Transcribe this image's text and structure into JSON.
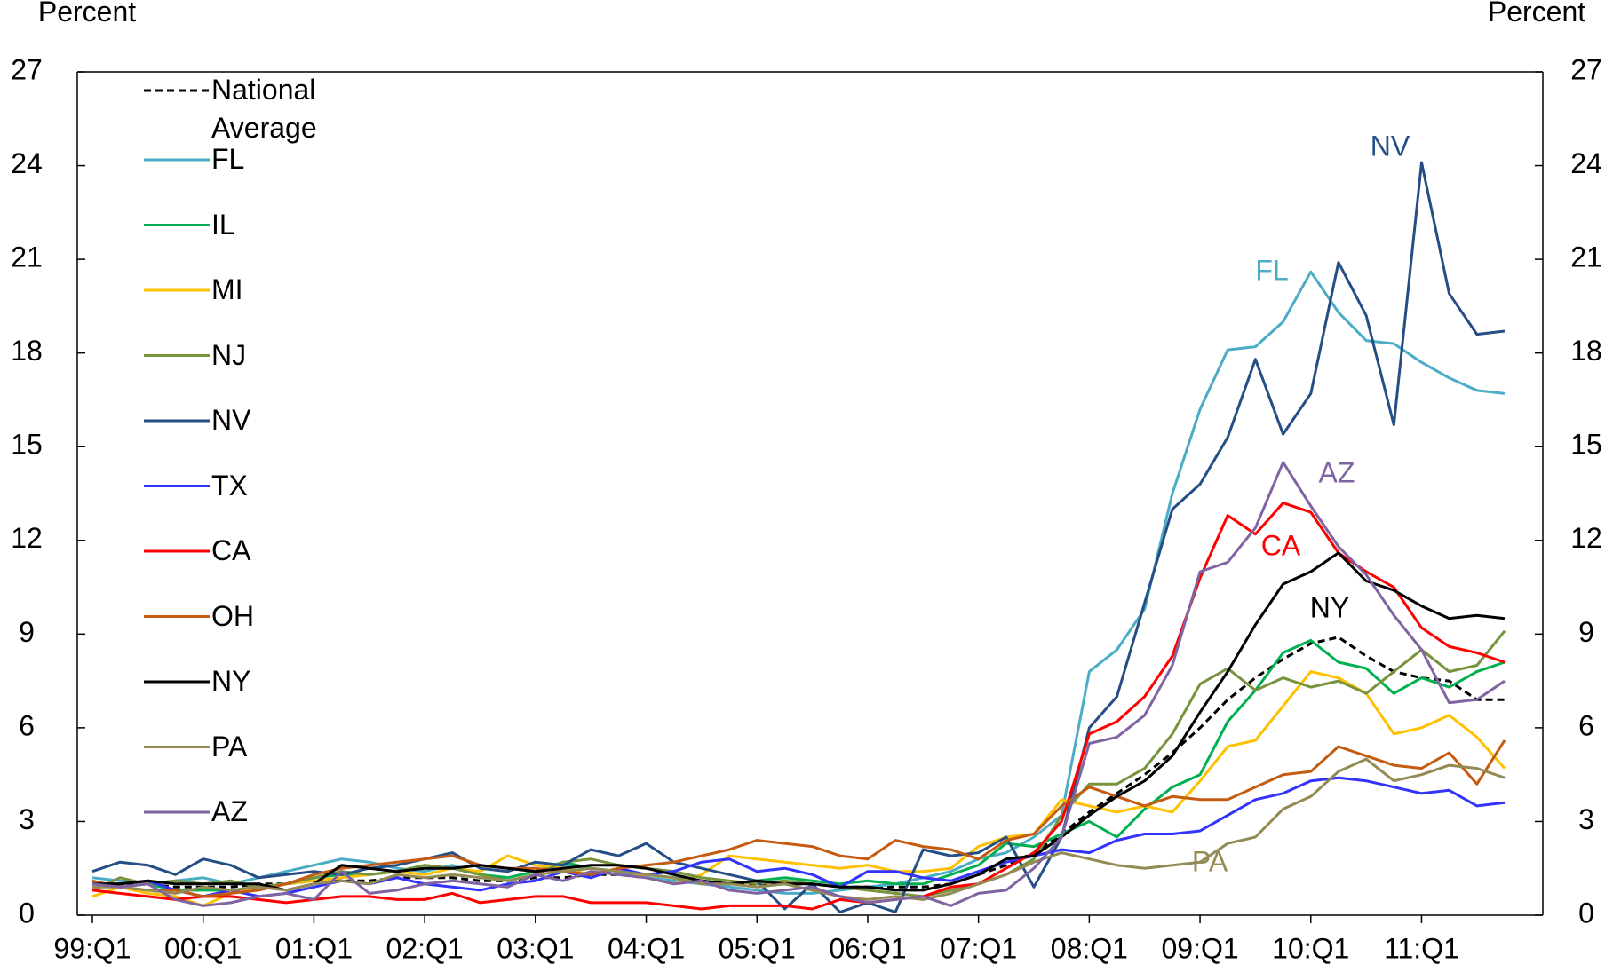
{
  "chart_data": {
    "type": "line",
    "y_label": "Percent",
    "y2_label": "Percent",
    "categories": [
      "99:Q1",
      null,
      null,
      null,
      "00:Q1",
      null,
      null,
      null,
      "01:Q1",
      null,
      null,
      null,
      "02:Q1",
      null,
      null,
      null,
      "03:Q1",
      null,
      null,
      null,
      "04:Q1",
      null,
      null,
      null,
      "05:Q1",
      null,
      null,
      null,
      "06:Q1",
      null,
      null,
      null,
      "07:Q1",
      null,
      null,
      null,
      "08:Q1",
      null,
      null,
      null,
      "09:Q1",
      null,
      null,
      null,
      "10:Q1",
      null,
      null,
      null,
      "11:Q1",
      null,
      null,
      null
    ],
    "ylim": [
      0,
      27
    ],
    "yticks": [
      0,
      3,
      6,
      9,
      12,
      15,
      18,
      21,
      24,
      27
    ],
    "y2lim": [
      0,
      27
    ],
    "y2ticks": [
      0,
      3,
      6,
      9,
      12,
      15,
      18,
      21,
      24,
      27
    ],
    "legend": "upper left",
    "series": [
      {
        "name": "National Average",
        "color": "#000000",
        "line_style": "dashed",
        "values": [
          1.0,
          1.0,
          1.0,
          0.9,
          0.9,
          0.9,
          1.0,
          1.0,
          1.1,
          1.1,
          1.1,
          1.2,
          1.2,
          1.2,
          1.1,
          1.1,
          1.2,
          1.2,
          1.3,
          1.3,
          1.2,
          1.1,
          1.1,
          1.0,
          1.0,
          1.0,
          1.0,
          0.9,
          0.9,
          0.9,
          0.9,
          1.0,
          1.3,
          1.6,
          2.0,
          2.6,
          3.3,
          3.9,
          4.5,
          5.2,
          6.0,
          6.9,
          7.6,
          8.2,
          8.7,
          8.9,
          8.3,
          7.8,
          7.6,
          7.5,
          6.9,
          6.9
        ]
      },
      {
        "name": "FL",
        "color": "#4bacc6",
        "values": [
          1.2,
          1.1,
          1.0,
          1.1,
          1.2,
          1.0,
          1.2,
          1.4,
          1.6,
          1.8,
          1.7,
          1.5,
          1.4,
          1.6,
          1.3,
          1.2,
          1.4,
          1.6,
          1.5,
          1.4,
          1.2,
          1.1,
          1.0,
          0.9,
          0.8,
          0.7,
          0.7,
          0.8,
          0.9,
          1.0,
          1.2,
          1.4,
          1.8,
          2.0,
          2.5,
          3.2,
          7.8,
          8.5,
          9.8,
          13.5,
          16.2,
          18.1,
          18.2,
          19.0,
          20.6,
          19.3,
          18.4,
          18.3,
          17.7,
          17.2,
          16.8,
          16.7
        ]
      },
      {
        "name": "IL",
        "color": "#00b050",
        "values": [
          1.0,
          0.9,
          1.0,
          0.8,
          0.8,
          0.8,
          0.9,
          1.0,
          1.2,
          1.3,
          1.3,
          1.4,
          1.6,
          1.5,
          1.3,
          1.2,
          1.4,
          1.7,
          1.5,
          1.4,
          1.3,
          1.2,
          1.1,
          1.0,
          1.1,
          1.2,
          1.1,
          1.0,
          1.1,
          1.0,
          1.0,
          1.3,
          1.6,
          2.3,
          2.2,
          2.6,
          3.0,
          2.5,
          3.4,
          4.1,
          4.5,
          6.2,
          7.2,
          8.4,
          8.8,
          8.1,
          7.9,
          7.1,
          7.6,
          7.3,
          7.8,
          8.1
        ]
      },
      {
        "name": "MI",
        "color": "#ffc000",
        "values": [
          0.6,
          0.9,
          0.7,
          0.6,
          0.3,
          0.7,
          0.9,
          1.0,
          1.1,
          1.2,
          1.3,
          1.4,
          1.3,
          1.5,
          1.4,
          1.9,
          1.6,
          1.5,
          1.3,
          1.5,
          1.2,
          1.0,
          1.3,
          1.9,
          1.8,
          1.7,
          1.6,
          1.5,
          1.6,
          1.4,
          1.4,
          1.5,
          2.2,
          2.5,
          2.6,
          3.7,
          3.5,
          3.3,
          3.5,
          3.3,
          4.3,
          5.4,
          5.6,
          6.7,
          7.8,
          7.6,
          7.1,
          5.8,
          6.0,
          6.4,
          5.7,
          4.7
        ]
      },
      {
        "name": "NJ",
        "color": "#77933c",
        "values": [
          0.8,
          1.2,
          1.0,
          1.1,
          1.0,
          1.1,
          0.9,
          1.0,
          1.2,
          1.4,
          1.3,
          1.4,
          1.6,
          1.5,
          1.3,
          1.1,
          1.3,
          1.7,
          1.8,
          1.6,
          1.5,
          1.4,
          1.2,
          1.1,
          1.0,
          1.1,
          1.0,
          0.9,
          0.8,
          0.7,
          0.6,
          0.8,
          1.0,
          1.3,
          1.8,
          3.2,
          4.2,
          4.2,
          4.7,
          5.8,
          7.4,
          7.9,
          7.2,
          7.6,
          7.3,
          7.5,
          7.1,
          7.8,
          8.5,
          7.8,
          8.0,
          9.1
        ]
      },
      {
        "name": "NV",
        "color": "#254e85",
        "values": [
          1.4,
          1.7,
          1.6,
          1.3,
          1.8,
          1.6,
          1.2,
          1.3,
          1.4,
          1.3,
          1.5,
          1.6,
          1.8,
          2.0,
          1.5,
          1.4,
          1.7,
          1.6,
          2.1,
          1.9,
          2.3,
          1.7,
          1.5,
          1.3,
          1.1,
          0.2,
          1.0,
          0.1,
          0.4,
          0.1,
          2.1,
          1.9,
          2.0,
          2.5,
          0.9,
          2.5,
          6.0,
          7.0,
          10.0,
          13.0,
          13.8,
          15.3,
          17.8,
          15.4,
          16.7,
          20.9,
          19.2,
          15.7,
          24.1,
          19.9,
          18.6,
          18.7
        ]
      },
      {
        "name": "TX",
        "color": "#3333ff",
        "values": [
          1.0,
          1.0,
          1.1,
          0.8,
          0.6,
          0.8,
          0.6,
          0.7,
          0.9,
          1.1,
          1.0,
          1.2,
          1.0,
          0.9,
          0.8,
          1.0,
          1.1,
          1.4,
          1.2,
          1.5,
          1.3,
          1.4,
          1.7,
          1.8,
          1.4,
          1.5,
          1.3,
          0.9,
          1.4,
          1.4,
          1.2,
          1.1,
          1.4,
          1.7,
          1.9,
          2.1,
          2.0,
          2.4,
          2.6,
          2.6,
          2.7,
          3.2,
          3.7,
          3.9,
          4.3,
          4.4,
          4.3,
          4.1,
          3.9,
          4.0,
          3.5,
          3.6
        ]
      },
      {
        "name": "CA",
        "color": "#ff0000",
        "values": [
          0.8,
          0.7,
          0.6,
          0.5,
          0.6,
          0.6,
          0.5,
          0.4,
          0.5,
          0.6,
          0.6,
          0.5,
          0.5,
          0.7,
          0.4,
          0.5,
          0.6,
          0.6,
          0.4,
          0.4,
          0.4,
          0.3,
          0.2,
          0.3,
          0.3,
          0.3,
          0.2,
          0.5,
          0.4,
          0.5,
          0.6,
          0.9,
          1.0,
          1.5,
          2.0,
          3.0,
          5.8,
          6.2,
          7.0,
          8.3,
          10.8,
          12.8,
          12.2,
          13.2,
          12.9,
          11.6,
          11.0,
          10.5,
          9.2,
          8.6,
          8.4,
          8.1
        ]
      },
      {
        "name": "OH",
        "color": "#c55a11",
        "values": [
          1.1,
          0.9,
          0.8,
          0.8,
          0.6,
          0.7,
          0.8,
          1.0,
          1.3,
          1.5,
          1.6,
          1.7,
          1.8,
          1.9,
          1.6,
          1.5,
          1.5,
          1.4,
          1.3,
          1.5,
          1.6,
          1.7,
          1.9,
          2.1,
          2.4,
          2.3,
          2.2,
          1.9,
          1.8,
          2.4,
          2.2,
          2.1,
          1.8,
          2.4,
          2.6,
          3.5,
          4.1,
          3.8,
          3.5,
          3.8,
          3.7,
          3.7,
          4.1,
          4.5,
          4.6,
          5.4,
          5.1,
          4.8,
          4.7,
          5.2,
          4.2,
          5.6
        ]
      },
      {
        "name": "NY",
        "color": "#000000",
        "values": [
          1.0,
          1.0,
          1.1,
          1.0,
          1.0,
          1.0,
          1.0,
          0.8,
          1.0,
          1.6,
          1.5,
          1.4,
          1.5,
          1.5,
          1.6,
          1.5,
          1.4,
          1.5,
          1.6,
          1.6,
          1.5,
          1.3,
          1.1,
          1.0,
          1.1,
          1.0,
          1.0,
          0.9,
          0.9,
          0.8,
          0.8,
          1.0,
          1.3,
          1.8,
          1.9,
          2.5,
          3.2,
          3.8,
          4.3,
          5.1,
          6.5,
          7.8,
          9.3,
          10.6,
          11.0,
          11.6,
          10.7,
          10.4,
          9.9,
          9.5,
          9.6,
          9.5
        ]
      },
      {
        "name": "PA",
        "color": "#948a54",
        "values": [
          0.9,
          0.9,
          0.8,
          0.7,
          0.9,
          0.8,
          0.9,
          0.8,
          1.0,
          1.1,
          1.0,
          1.3,
          1.2,
          1.3,
          1.2,
          1.1,
          1.3,
          1.4,
          1.5,
          1.4,
          1.3,
          1.2,
          1.0,
          1.0,
          0.9,
          1.0,
          0.8,
          0.6,
          0.5,
          0.6,
          0.5,
          0.7,
          1.0,
          1.3,
          1.7,
          2.0,
          1.8,
          1.6,
          1.5,
          1.6,
          1.7,
          2.3,
          2.5,
          3.4,
          3.8,
          4.6,
          5.0,
          4.3,
          4.5,
          4.8,
          4.7,
          4.4
        ]
      },
      {
        "name": "AZ",
        "color": "#8064a2",
        "values": [
          1.0,
          0.9,
          1.0,
          0.5,
          0.3,
          0.4,
          0.6,
          0.7,
          0.5,
          1.4,
          0.7,
          0.8,
          1.0,
          1.1,
          1.0,
          0.9,
          1.3,
          1.1,
          1.4,
          1.3,
          1.2,
          1.0,
          1.1,
          0.8,
          0.7,
          0.8,
          0.9,
          0.6,
          0.4,
          0.5,
          0.6,
          0.3,
          0.7,
          0.8,
          1.5,
          2.5,
          5.5,
          5.7,
          6.4,
          8.0,
          11.0,
          11.3,
          12.4,
          14.5,
          13.1,
          11.8,
          10.9,
          9.6,
          8.5,
          6.8,
          6.9,
          7.5
        ]
      }
    ],
    "annotations": [
      "NV",
      "FL",
      "AZ",
      "CA",
      "NY",
      "PA"
    ]
  }
}
